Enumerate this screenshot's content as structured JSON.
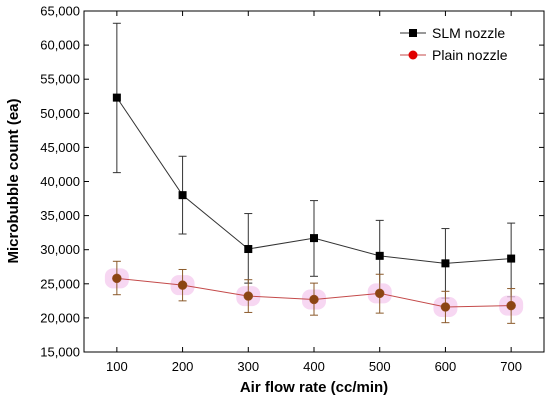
{
  "chart_data": {
    "type": "line",
    "xlabel": "Air flow rate (cc/min)",
    "ylabel": "Microbubble count (ea)",
    "x": [
      100,
      200,
      300,
      400,
      500,
      600,
      700
    ],
    "xlim": [
      50,
      750
    ],
    "ylim": [
      15000,
      65000
    ],
    "x_ticks": [
      "100",
      "200",
      "300",
      "400",
      "500",
      "600",
      "700"
    ],
    "y_ticks": [
      15000,
      20000,
      25000,
      30000,
      35000,
      40000,
      45000,
      50000,
      55000,
      60000,
      65000
    ],
    "y_tick_labels": [
      "15,000",
      "20,000",
      "25,000",
      "30,000",
      "35,000",
      "40,000",
      "45,000",
      "50,000",
      "55,000",
      "60,000",
      "65,000"
    ],
    "grid": false,
    "legend_position": "top-right",
    "series": [
      {
        "name": "SLM nozzle",
        "color": "#000000",
        "marker": "square",
        "values": [
          52300,
          38000,
          30100,
          31700,
          29100,
          28000,
          28700
        ],
        "error_low": [
          41300,
          32300,
          25100,
          26100,
          23900,
          22900,
          23100
        ],
        "error_high": [
          63200,
          43700,
          35300,
          37200,
          34300,
          33100,
          33900
        ]
      },
      {
        "name": "Plain nozzle",
        "color": "#e00000",
        "marker": "circle",
        "values": [
          25800,
          24800,
          23200,
          22700,
          23600,
          21600,
          21800
        ],
        "error_low": [
          23400,
          22500,
          20800,
          20400,
          20700,
          19300,
          19200
        ],
        "error_high": [
          28300,
          27100,
          25600,
          25100,
          26400,
          23900,
          24300
        ]
      }
    ]
  }
}
